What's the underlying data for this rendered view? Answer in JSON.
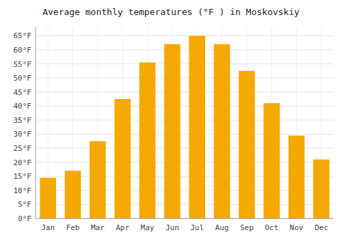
{
  "chart_data": {
    "type": "bar",
    "title": "Average monthly temperatures (°F ) in Moskovskiy",
    "categories": [
      "Jan",
      "Feb",
      "Mar",
      "Apr",
      "May",
      "Jun",
      "Jul",
      "Aug",
      "Sep",
      "Oct",
      "Nov",
      "Dec"
    ],
    "values": [
      14.5,
      17.0,
      27.5,
      42.5,
      55.5,
      62.0,
      65.0,
      62.0,
      52.5,
      41.0,
      29.5,
      21.0
    ],
    "color": "#F5A800",
    "ylim": [
      0,
      68
    ],
    "yticks": [
      {
        "value": 0,
        "label": "0°F"
      },
      {
        "value": 5,
        "label": "5°F"
      },
      {
        "value": 10,
        "label": "10°F"
      },
      {
        "value": 15,
        "label": "15°F"
      },
      {
        "value": 20,
        "label": "20°F"
      },
      {
        "value": 25,
        "label": "25°F"
      },
      {
        "value": 30,
        "label": "30°F"
      },
      {
        "value": 35,
        "label": "35°F"
      },
      {
        "value": 40,
        "label": "40°F"
      },
      {
        "value": 45,
        "label": "45°F"
      },
      {
        "value": 50,
        "label": "50°F"
      },
      {
        "value": 55,
        "label": "55°F"
      },
      {
        "value": 60,
        "label": "60°F"
      },
      {
        "value": 65,
        "label": "65°F"
      }
    ],
    "grid": true
  }
}
